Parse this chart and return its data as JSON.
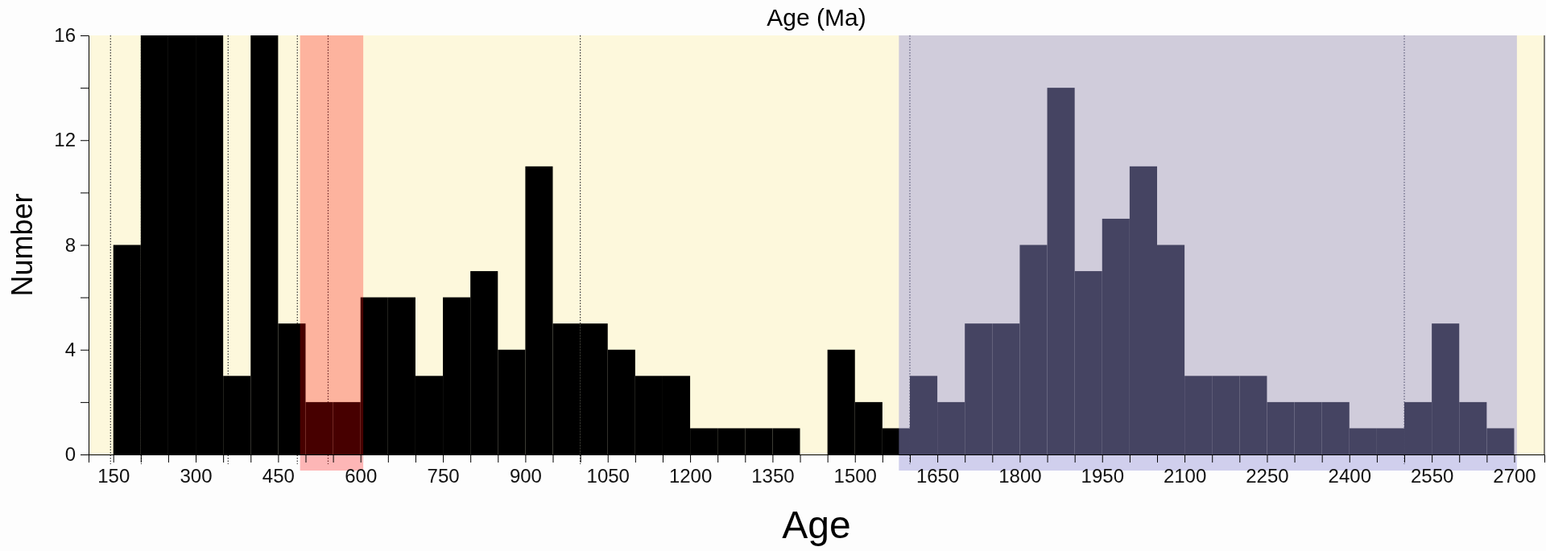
{
  "chart_data": {
    "type": "histogram",
    "title": "Age (Ma)",
    "xlabel": "Age",
    "ylabel": "Number",
    "bins": [
      150,
      200,
      250,
      300,
      350,
      400,
      450,
      500,
      550,
      600,
      650,
      700,
      750,
      800,
      850,
      900,
      950,
      1000,
      1050,
      1100,
      1150,
      1200,
      1250,
      1300,
      1350,
      1400,
      1450,
      1500,
      1550,
      1600,
      1650,
      1700,
      1750,
      1800,
      1850,
      1900,
      1950,
      2000,
      2050,
      2100,
      2150,
      2200,
      2250,
      2300,
      2350,
      2400,
      2450,
      2500,
      2550,
      2600,
      2650,
      2700
    ],
    "values": [
      8,
      16,
      16,
      16,
      3,
      16,
      5,
      2,
      2,
      6,
      6,
      3,
      6,
      7,
      4,
      11,
      5,
      5,
      4,
      3,
      3,
      1,
      1,
      1,
      1,
      0,
      4,
      2,
      1,
      3,
      2,
      5,
      5,
      8,
      14,
      7,
      9,
      11,
      8,
      3,
      3,
      3,
      2,
      2,
      2,
      1,
      1,
      2,
      5,
      2,
      1
    ],
    "color": "#000000",
    "xlim": [
      105,
      2755
    ],
    "xticks": [
      150,
      {
        "value": 200,
        "label": null
      },
      {
        "value": 250,
        "label": null
      },
      300,
      {
        "value": 350,
        "label": null
      },
      {
        "value": 400,
        "label": null
      },
      450,
      {
        "value": 500,
        "label": null
      },
      {
        "value": 550,
        "label": null
      },
      600,
      {
        "value": 650,
        "label": null
      },
      {
        "value": 700,
        "label": null
      },
      750,
      {
        "value": 800,
        "label": null
      },
      {
        "value": 850,
        "label": null
      },
      900,
      {
        "value": 950,
        "label": null
      },
      {
        "value": 1000,
        "label": null
      },
      1050,
      {
        "value": 1100,
        "label": null
      },
      {
        "value": 1150,
        "label": null
      },
      1200,
      {
        "value": 1250,
        "label": null
      },
      {
        "value": 1300,
        "label": null
      },
      1350,
      {
        "value": 1400,
        "label": null
      },
      {
        "value": 1450,
        "label": null
      },
      1500,
      {
        "value": 1550,
        "label": null
      },
      {
        "value": 1600,
        "label": null
      },
      1650,
      {
        "value": 1700,
        "label": null
      },
      {
        "value": 1750,
        "label": null
      },
      1800,
      {
        "value": 1850,
        "label": null
      },
      {
        "value": 1900,
        "label": null
      },
      1950,
      {
        "value": 2000,
        "label": null
      },
      {
        "value": 2050,
        "label": null
      },
      2100,
      {
        "value": 2150,
        "label": null
      },
      {
        "value": 2200,
        "label": null
      },
      2250,
      {
        "value": 2300,
        "label": null
      },
      {
        "value": 2350,
        "label": null
      },
      2400,
      {
        "value": 2450,
        "label": null
      },
      {
        "value": 2500,
        "label": null
      },
      2550,
      {
        "value": 2600,
        "label": null
      },
      {
        "value": 2650,
        "label": null
      },
      2700
    ],
    "ylim": [
      0,
      16
    ],
    "yticks": [
      0,
      {
        "value": 2,
        "label": null
      },
      4,
      {
        "value": 6,
        "label": null
      },
      8,
      {
        "value": 10,
        "label": null
      },
      12,
      {
        "value": 14,
        "label": null
      },
      16
    ],
    "ref_lines": [
      {
        "axis": "x",
        "value": 145,
        "line_style": "dotted"
      },
      {
        "axis": "x",
        "value": 201,
        "line_style": "dotted"
      },
      {
        "axis": "x",
        "value": 359,
        "line_style": "dotted"
      },
      {
        "axis": "x",
        "value": 485,
        "line_style": "dotted"
      },
      {
        "axis": "x",
        "value": 541,
        "line_style": "dotted"
      },
      {
        "axis": "x",
        "value": 1000,
        "line_style": "dotted"
      },
      {
        "axis": "x",
        "value": 1600,
        "line_style": "dotted"
      },
      {
        "axis": "x",
        "value": 2500,
        "line_style": "dotted"
      }
    ],
    "bands": [
      {
        "axis": "x",
        "from": 490,
        "to": 605,
        "color": "#ff0000"
      },
      {
        "axis": "x",
        "from": 1580,
        "to": 2705,
        "color": "#9997da"
      }
    ],
    "grid": false
  }
}
